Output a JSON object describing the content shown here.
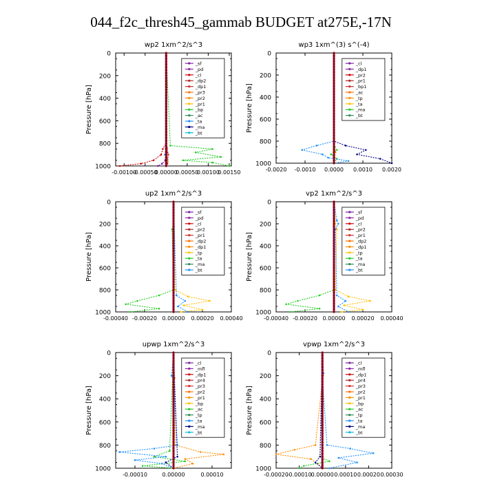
{
  "figure": {
    "title": "044_f2c_thresh45_gammab  BUDGET at275E,-17N"
  },
  "chart_data": [
    {
      "type": "line",
      "title": "wp2   1xm^2/s^3",
      "ylabel": "Pressure [hPa]",
      "xlim": [
        -0.0012,
        0.00155
      ],
      "ylim": [
        1000,
        0
      ],
      "xticks": [
        -0.001,
        -0.0005,
        0.0,
        0.0005,
        0.001,
        0.0015
      ],
      "xtick_labels_printed": "-0.00100.00050.00000.00050.00100.0015",
      "yticks": [
        0,
        200,
        400,
        600,
        800,
        1000
      ],
      "legend": [
        "_sf",
        "_pd",
        "_cl",
        "_dp2",
        "_dp1",
        "_pr3",
        "_pr2",
        "_pr1",
        "_bp",
        "_ac",
        "_ta",
        "_ma",
        "_bt"
      ],
      "legend_position": "top-right",
      "series": [
        {
          "name": "_pd",
          "color": "#7b1fa2",
          "y": [
            0,
            400,
            800,
            880,
            940,
            980,
            1000
          ],
          "x": [
            0,
            0,
            0,
            3e-05,
            3e-05,
            -0.0001,
            -0.0002
          ]
        },
        {
          "name": "_cl",
          "color": "#cc0000",
          "y": [
            0,
            400,
            800,
            850,
            900,
            950,
            980,
            1000
          ],
          "x": [
            0,
            0,
            0.0,
            -8e-05,
            -0.00012,
            -0.0003,
            -0.0006,
            -0.0011
          ]
        },
        {
          "name": "_dp1",
          "color": "#b22222",
          "y": [
            0,
            800,
            840,
            900,
            980,
            1000
          ],
          "x": [
            0,
            0,
            2e-05,
            5e-05,
            3e-05,
            0.0
          ]
        },
        {
          "name": "_pr2",
          "color": "#ff8c00",
          "y": [
            0,
            800,
            900,
            960,
            1000
          ],
          "x": [
            0,
            0,
            2e-05,
            4e-05,
            0.0
          ]
        },
        {
          "name": "_bp",
          "color": "#22cc22",
          "y": [
            0,
            820,
            850,
            880,
            920,
            950,
            970,
            1000
          ],
          "x": [
            0,
            0.0001,
            0.0011,
            0.0007,
            0.0013,
            0.0004,
            0.0011,
            0.0015
          ]
        },
        {
          "name": "_ac",
          "color": "#1e90ff",
          "y": [
            0,
            850,
            900,
            950,
            1000
          ],
          "x": [
            0,
            0,
            -3e-05,
            2e-05,
            0.0
          ]
        },
        {
          "name": "_ta",
          "color": "#000080",
          "y": [
            0,
            850,
            950,
            1000
          ],
          "x": [
            0,
            0,
            -2e-05,
            0.0
          ]
        },
        {
          "name": "_bt",
          "color": "#00bcd4",
          "y": [
            0,
            1000
          ],
          "x": [
            0,
            0
          ]
        }
      ]
    },
    {
      "type": "line",
      "title": "wp3   1xm^(3) s^(-4)",
      "ylabel": "Pressure [hPa]",
      "xlim": [
        -0.002,
        0.002
      ],
      "ylim": [
        1000,
        0
      ],
      "xticks": [
        -0.002,
        -0.001,
        0.0,
        0.001,
        0.002
      ],
      "xtick_labels_printed": "-0.0020 -0.0010 0.0000 0.0010 0.0020",
      "yticks": [
        0,
        200,
        400,
        600,
        800,
        1000
      ],
      "legend": [
        "_cl",
        "_dp1",
        "_pr2",
        "_pr1",
        "_bp1",
        "_ac",
        "_tp",
        "_ta",
        "_ma",
        "_bt"
      ],
      "legend_position": "top-right",
      "series": [
        {
          "name": "_cl",
          "color": "#cc0000",
          "y": [
            0,
            850,
            950,
            1000
          ],
          "x": [
            0,
            0,
            2e-05,
            0.0
          ]
        },
        {
          "name": "_pr1",
          "color": "#ff8c00",
          "y": [
            0,
            850,
            900,
            950,
            1000
          ],
          "x": [
            0,
            2e-05,
            5e-05,
            2e-05,
            0.0
          ]
        },
        {
          "name": "_ac",
          "color": "#22cc22",
          "y": [
            0,
            850,
            880,
            920,
            960,
            1000
          ],
          "x": [
            0,
            2e-05,
            0.0001,
            -0.0001,
            0.0001,
            0.0
          ]
        },
        {
          "name": "_tp",
          "color": "#1e90ff",
          "y": [
            0,
            800,
            840,
            880,
            920,
            950,
            980,
            1000
          ],
          "x": [
            0,
            0,
            -0.0006,
            -0.0011,
            -0.0004,
            -0.0002,
            0.0005,
            0.0
          ]
        },
        {
          "name": "_ta",
          "color": "#000080",
          "y": [
            0,
            800,
            840,
            880,
            920,
            960,
            1000
          ],
          "x": [
            0,
            0,
            0.0004,
            0.0011,
            0.0008,
            0.0016,
            0.002
          ]
        },
        {
          "name": "_bt",
          "color": "#00bcd4",
          "y": [
            0,
            1000
          ],
          "x": [
            0,
            0
          ]
        }
      ]
    },
    {
      "type": "line",
      "title": "up2   1xm^2/s^3",
      "ylabel": "Pressure [hPa]",
      "xlim": [
        -0.0004,
        0.0004
      ],
      "ylim": [
        1000,
        0
      ],
      "xticks": [
        -0.0004,
        -0.0002,
        0.0,
        0.0002,
        0.0004
      ],
      "xtick_labels_printed": "-0.00040 -0.00020 0.00000 0.00020 0.00040",
      "yticks": [
        0,
        200,
        400,
        600,
        800,
        1000
      ],
      "legend": [
        "_sf",
        "_pd",
        "_cl",
        "_pr2",
        "_pr1",
        "_dp2",
        "_dp1",
        "_tp",
        "_ta",
        "_ma",
        "_bt"
      ],
      "legend_position": "top-right",
      "series": [
        {
          "name": "_cl",
          "color": "#cc0000",
          "y": [
            0,
            1000
          ],
          "x": [
            0,
            0
          ]
        },
        {
          "name": "_pr2",
          "color": "#ffbf00",
          "y": [
            0,
            800,
            860,
            900,
            940,
            980,
            1000
          ],
          "x": [
            0,
            1e-05,
            0.0001,
            0.00025,
            7e-05,
            0.0002,
            5e-05
          ]
        },
        {
          "name": "_dp1",
          "color": "#22cc22",
          "y": [
            0,
            200,
            250,
            800,
            850,
            900,
            930,
            970,
            1000
          ],
          "x": [
            0,
            0,
            -1e-05,
            0,
            -0.0001,
            -0.00025,
            -0.00033,
            -0.0001,
            -0.0003
          ]
        },
        {
          "name": "_tp",
          "color": "#1e90ff",
          "y": [
            0,
            850,
            900,
            950,
            1000
          ],
          "x": [
            0,
            2e-05,
            8e-05,
            3e-05,
            0.0001
          ]
        },
        {
          "name": "_bt",
          "color": "#00bcd4",
          "y": [
            0,
            1000
          ],
          "x": [
            0,
            0
          ]
        }
      ]
    },
    {
      "type": "line",
      "title": "vp2   1xm^2/s^3",
      "ylabel": "Pressure [hPa]",
      "xlim": [
        -0.0004,
        0.0004
      ],
      "ylim": [
        1000,
        0
      ],
      "xticks": [
        -0.0004,
        -0.0002,
        0.0,
        0.0002,
        0.0004
      ],
      "xtick_labels_printed": "-0.00040 -0.00020 0.00000 0.00020 0.00040",
      "yticks": [
        0,
        200,
        400,
        600,
        800,
        1000
      ],
      "legend": [
        "_sf",
        "_pd",
        "_cl",
        "_pr2",
        "_pr1",
        "_dp2",
        "_dp1",
        "_tp",
        "_ta",
        "_ma",
        "_bt"
      ],
      "legend_position": "top-right",
      "series": [
        {
          "name": "_cl",
          "color": "#cc0000",
          "y": [
            0,
            1000
          ],
          "x": [
            0,
            0
          ]
        },
        {
          "name": "_pr2",
          "color": "#ffbf00",
          "y": [
            0,
            200,
            250,
            800,
            860,
            900,
            940,
            980,
            1000
          ],
          "x": [
            0,
            1e-05,
            2e-05,
            1e-05,
            0.0001,
            0.00025,
            7e-05,
            0.0002,
            5e-05
          ]
        },
        {
          "name": "_dp1",
          "color": "#22cc22",
          "y": [
            0,
            800,
            850,
            900,
            930,
            970,
            1000
          ],
          "x": [
            0,
            0,
            -0.0001,
            -0.00025,
            -0.00033,
            -0.0001,
            -0.0003
          ]
        },
        {
          "name": "_tp",
          "color": "#1e90ff",
          "y": [
            0,
            170,
            200,
            250,
            850,
            900,
            950,
            1000
          ],
          "x": [
            0,
            2e-05,
            3e-05,
            1e-05,
            2e-05,
            8e-05,
            3e-05,
            0.0001
          ]
        },
        {
          "name": "_bt",
          "color": "#00bcd4",
          "y": [
            0,
            1000
          ],
          "x": [
            0,
            0
          ]
        }
      ]
    },
    {
      "type": "line",
      "title": "upwp   1xm^2/s^3",
      "ylabel": "Pressure [hPa]",
      "xlim": [
        -0.00015,
        0.00015
      ],
      "ylim": [
        1000,
        0
      ],
      "xticks": [
        -0.0001,
        0.0,
        0.0001
      ],
      "xtick_labels_printed": "-0.00010 0.00000 0.00010",
      "yticks": [
        0,
        200,
        400,
        600,
        800,
        1000
      ],
      "legend": [
        "_cl",
        "_mfl",
        "_dp1",
        "_pr4",
        "_pr3",
        "_pr2",
        "_pr1",
        "_bp",
        "_ac",
        "_tp",
        "_ta",
        "_ma",
        "_bt"
      ],
      "legend_position": "top-right",
      "series": [
        {
          "name": "_cl",
          "color": "#cc0000",
          "y": [
            0,
            1000
          ],
          "x": [
            0,
            0
          ]
        },
        {
          "name": "_pr2",
          "color": "#ff8c00",
          "y": [
            0,
            220,
            260,
            800,
            860,
            880,
            920,
            960,
            1000
          ],
          "x": [
            0,
            3e-06,
            0,
            5e-06,
            7e-05,
            0.00013,
            3e-05,
            5e-05,
            0.0
          ]
        },
        {
          "name": "_bp",
          "color": "#22cc22",
          "y": [
            0,
            850,
            900,
            940,
            980,
            1000
          ],
          "x": [
            0,
            -1e-05,
            -5e-05,
            3e-05,
            -8e-05,
            0.0
          ]
        },
        {
          "name": "_tp",
          "color": "#1e90ff",
          "y": [
            0,
            200,
            240,
            800,
            830,
            860,
            900,
            930,
            960,
            1000
          ],
          "x": [
            0,
            -5e-06,
            0,
            1e-05,
            -5e-05,
            -0.00014,
            -2e-05,
            -0.0001,
            -3e-05,
            0.0
          ]
        },
        {
          "name": "_ta",
          "color": "#000080",
          "y": [
            0,
            900,
            950,
            1000
          ],
          "x": [
            0,
            1e-05,
            -2e-05,
            0.0
          ]
        },
        {
          "name": "_bt",
          "color": "#00bcd4",
          "y": [
            0,
            1000
          ],
          "x": [
            0,
            0
          ]
        }
      ]
    },
    {
      "type": "line",
      "title": "vpwp   1xm^2/s^3",
      "ylabel": "Pressure [hPa]",
      "xlim": [
        -0.0002,
        0.0003
      ],
      "ylim": [
        1000,
        0
      ],
      "xticks": [
        -0.0002,
        -0.0001,
        0.0,
        0.0001,
        0.0002,
        0.0003
      ],
      "xtick_labels_printed": "-0.00020.00010.000000.000100.000200.00030",
      "yticks": [
        0,
        200,
        400,
        600,
        800,
        1000
      ],
      "legend": [
        "_cl",
        "_mfl",
        "_dp1",
        "_pr4",
        "_pr3",
        "_pr2",
        "_pr1",
        "_bp",
        "_ac",
        "_tp",
        "_ta",
        "_ma",
        "_bt"
      ],
      "legend_position": "top-right",
      "series": [
        {
          "name": "_cl",
          "color": "#cc0000",
          "y": [
            0,
            1000
          ],
          "x": [
            0,
            0
          ]
        },
        {
          "name": "_pr2",
          "color": "#ff8c00",
          "y": [
            0,
            200,
            240,
            800,
            840,
            880,
            920,
            960,
            1000
          ],
          "x": [
            0,
            3e-06,
            0,
            -3e-05,
            -0.00012,
            -0.0002,
            -5e-05,
            -2e-05,
            0.0
          ]
        },
        {
          "name": "_bp",
          "color": "#22cc22",
          "y": [
            0,
            900,
            940,
            980,
            1000
          ],
          "x": [
            0,
            -1e-05,
            3e-05,
            -8e-05,
            -0.0001
          ]
        },
        {
          "name": "_tp",
          "color": "#1e90ff",
          "y": [
            0,
            180,
            220,
            800,
            830,
            870,
            910,
            950,
            1000
          ],
          "x": [
            0,
            5e-06,
            0,
            2e-05,
            0.00012,
            0.00022,
            7e-05,
            0.00015,
            3e-05
          ]
        },
        {
          "name": "_ta",
          "color": "#000080",
          "y": [
            0,
            900,
            950,
            1000
          ],
          "x": [
            0,
            -1e-05,
            -3e-05,
            0.0
          ]
        },
        {
          "name": "_bt",
          "color": "#00bcd4",
          "y": [
            0,
            1000
          ],
          "x": [
            0,
            0
          ]
        }
      ]
    }
  ]
}
